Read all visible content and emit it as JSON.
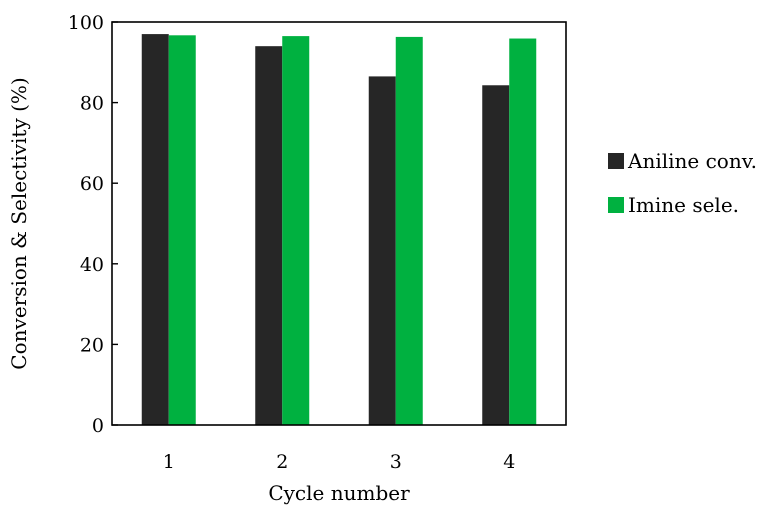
{
  "chart_data": {
    "type": "bar",
    "title": "",
    "xlabel": "Cycle number",
    "ylabel": "Conversion & Selectivity (%)",
    "categories": [
      "1",
      "2",
      "3",
      "4"
    ],
    "ylim": [
      0,
      100
    ],
    "yticks": [
      "0",
      "20",
      "40",
      "60",
      "80",
      "100"
    ],
    "grid": false,
    "legend_position": "right",
    "series": [
      {
        "name": "Aniline conv.",
        "color": "#262626",
        "values": [
          97,
          94,
          86.5,
          84.3
        ]
      },
      {
        "name": "Imine sele.",
        "color": "#00b140",
        "values": [
          96.7,
          96.5,
          96.3,
          95.9
        ]
      }
    ]
  }
}
